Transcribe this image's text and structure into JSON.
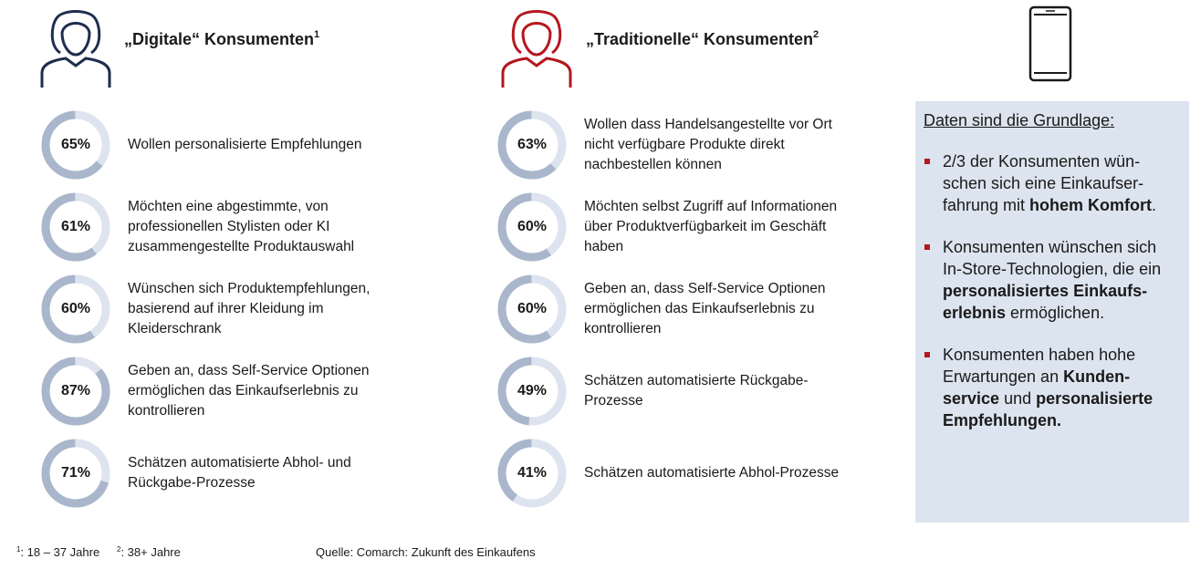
{
  "digital": {
    "title": "„Digitale“ Konsumenten",
    "footnote_mark": "1",
    "color": "#1f2d4e"
  },
  "traditional": {
    "title": "„Traditionelle“ Konsumenten",
    "footnote_mark": "2",
    "color": "#b5171f"
  },
  "donut_colors": {
    "filled": "#a9b6cb",
    "remaining": "#dde4ef"
  },
  "chart_data": [
    {
      "type": "pie",
      "series_label": "„Digitale“ Konsumenten",
      "items": [
        {
          "value": 65,
          "label": "65%",
          "text": [
            "Wollen personalisierte Empfehlungen"
          ]
        },
        {
          "value": 61,
          "label": "61%",
          "text": [
            "Möchten eine abgestimmte, von",
            "professionellen Stylisten oder KI",
            "zusammengestellte Produktauswahl"
          ]
        },
        {
          "value": 60,
          "label": "60%",
          "text": [
            "Wünschen sich Produktempfehlungen,",
            "basierend auf ihrer Kleidung im",
            "Kleiderschrank"
          ]
        },
        {
          "value": 87,
          "label": "87%",
          "text": [
            "Geben an, dass Self-Service Optionen",
            "ermöglichen das Einkaufserlebnis zu",
            "kontrollieren"
          ]
        },
        {
          "value": 71,
          "label": "71%",
          "text": [
            "Schätzen automatisierte Abhol- und",
            "Rückgabe-Prozesse"
          ]
        }
      ]
    },
    {
      "type": "pie",
      "series_label": "„Traditionelle“ Konsumenten",
      "items": [
        {
          "value": 63,
          "label": "63%",
          "text": [
            "Wollen dass Handelsangestellte vor Ort",
            "nicht verfügbare  Produkte direkt",
            "nachbestellen können"
          ]
        },
        {
          "value": 60,
          "label": "60%",
          "text": [
            "Möchten selbst Zugriff auf Informationen",
            "über Produktverfügbarkeit im Geschäft",
            "haben"
          ]
        },
        {
          "value": 60,
          "label": "60%",
          "text": [
            "Geben an, dass Self-Service Optionen",
            "ermöglichen das Einkaufserlebnis zu",
            "kontrollieren"
          ]
        },
        {
          "value": 49,
          "label": "49%",
          "text": [
            "Schätzen automatisierte  Rückgabe-",
            "Prozesse"
          ]
        },
        {
          "value": 41,
          "label": "41%",
          "text": [
            "Schätzen automatisierte Abhol-Prozesse"
          ]
        }
      ]
    }
  ],
  "panel": {
    "title": "Daten sind die Grundlage",
    "title_suffix": ":",
    "bullet_color": "#b5171f",
    "background": "#dce4ef",
    "bullets": [
      [
        {
          "t": "2/3 der Konsumenten wün-\nschen sich eine Einkaufser-\nfahrung mit ",
          "b": false
        },
        {
          "t": "hohem Komfort",
          "b": true
        },
        {
          "t": ".",
          "b": false
        }
      ],
      [
        {
          "t": "Konsumenten wünschen sich\nIn-Store-Technologien, die ein\n",
          "b": false
        },
        {
          "t": "personalisiertes Einkaufs-\nerlebnis",
          "b": true
        },
        {
          "t": " ermöglichen.",
          "b": false
        }
      ],
      [
        {
          "t": "Konsumenten haben hohe\nErwartungen an ",
          "b": false
        },
        {
          "t": "Kunden-\nservice",
          "b": true
        },
        {
          "t": " und ",
          "b": false
        },
        {
          "t": "personalisierte\nEmpfehlungen.",
          "b": true
        }
      ]
    ]
  },
  "footer": {
    "note1_mark": "1",
    "note1_text": ": 18 – 37 Jahre",
    "note2_mark": "2",
    "note2_text": ": 38+ Jahre",
    "source": "Quelle: Comarch: Zukunft des Einkaufens"
  },
  "icons": {
    "person": "person-outline-icon",
    "phone": "smartphone-icon"
  }
}
